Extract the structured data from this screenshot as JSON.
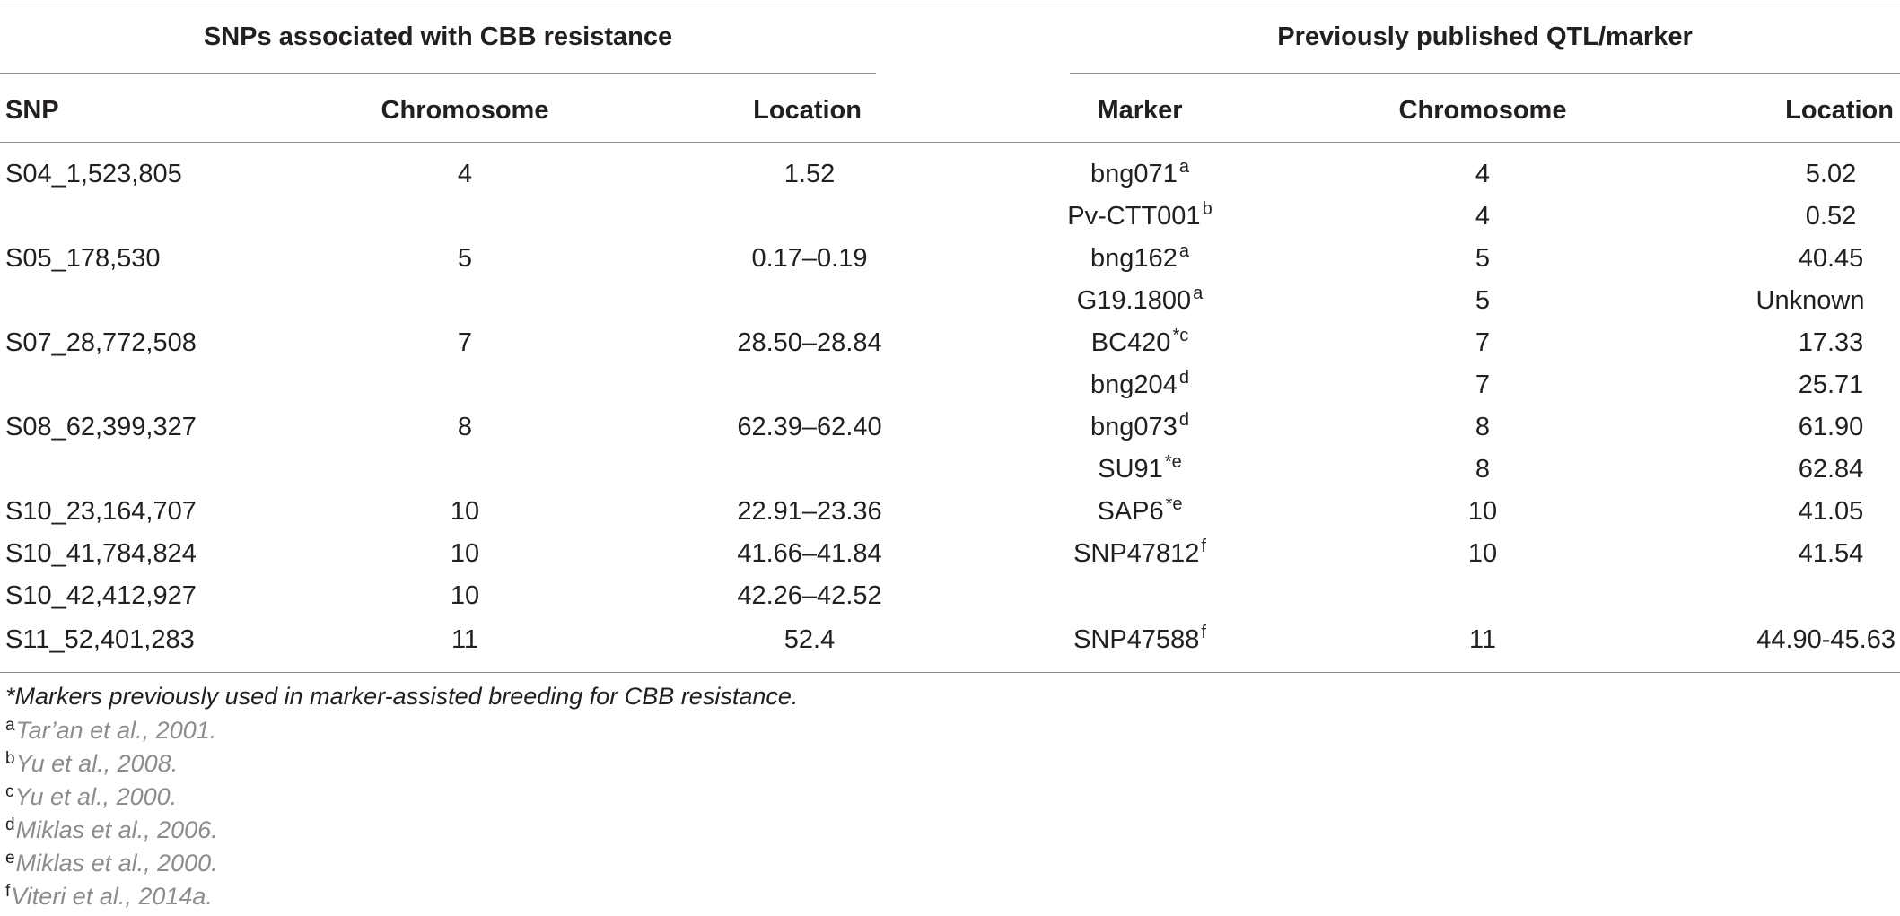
{
  "groups": {
    "left": "SNPs associated with CBB resistance",
    "right": "Previously published QTL/marker"
  },
  "columns": {
    "snp": "SNP",
    "chromosome": "Chromosome",
    "location": "Location",
    "marker": "Marker",
    "marker_chromosome": "Chromosome",
    "marker_location": "Location"
  },
  "rows": [
    {
      "snp": "S04_1,523,805",
      "chr": "4",
      "loc": "1.52",
      "marker": "bng071",
      "msup": "a",
      "mchr": "4",
      "mloc": "5.02"
    },
    {
      "snp": "",
      "chr": "",
      "loc": "",
      "marker": "Pv-CTT001",
      "msup": "b",
      "mchr": "4",
      "mloc": "0.52"
    },
    {
      "snp": "S05_178,530",
      "chr": "5",
      "loc": "0.17–0.19",
      "marker": "bng162",
      "msup": "a",
      "mchr": "5",
      "mloc": "40.45"
    },
    {
      "snp": "",
      "chr": "",
      "loc": "",
      "marker": "G19.1800",
      "msup": "a",
      "mchr": "5",
      "mloc": "Unknown"
    },
    {
      "snp": "S07_28,772,508",
      "chr": "7",
      "loc": "28.50–28.84",
      "marker": "BC420",
      "msup": "*c",
      "mchr": "7",
      "mloc": "17.33"
    },
    {
      "snp": "",
      "chr": "",
      "loc": "",
      "marker": "bng204",
      "msup": "d",
      "mchr": "7",
      "mloc": "25.71"
    },
    {
      "snp": "S08_62,399,327",
      "chr": "8",
      "loc": "62.39–62.40",
      "marker": "bng073",
      "msup": "d",
      "mchr": "8",
      "mloc": "61.90"
    },
    {
      "snp": "",
      "chr": "",
      "loc": "",
      "marker": "SU91",
      "msup": "*e",
      "mchr": "8",
      "mloc": "62.84"
    },
    {
      "snp": "S10_23,164,707",
      "chr": "10",
      "loc": "22.91–23.36",
      "marker": "SAP6",
      "msup": "*e",
      "mchr": "10",
      "mloc": "41.05"
    },
    {
      "snp": "S10_41,784,824",
      "chr": "10",
      "loc": "41.66–41.84",
      "marker": "SNP47812",
      "msup": "f",
      "mchr": "10",
      "mloc": "41.54"
    },
    {
      "snp": "S10_42,412,927",
      "chr": "10",
      "loc": "42.26–42.52",
      "marker": "",
      "msup": "",
      "mchr": "",
      "mloc": ""
    },
    {
      "snp": "S11_52,401,283",
      "chr": "11",
      "loc": "52.4",
      "marker": "SNP47588",
      "msup": "f",
      "mchr": "11",
      "mloc": "44.90-45.63"
    }
  ],
  "footnotes": {
    "star": "*Markers previously used in marker-assisted breeding for CBB resistance.",
    "refs": [
      {
        "sup": "a",
        "text": "Tar’an et al., 2001."
      },
      {
        "sup": "b",
        "text": "Yu et al., 2008."
      },
      {
        "sup": "c",
        "text": "Yu et al., 2000."
      },
      {
        "sup": "d",
        "text": "Miklas et al., 2006."
      },
      {
        "sup": "e",
        "text": "Miklas et al., 2000."
      },
      {
        "sup": "f",
        "text": "Viteri et al., 2014a."
      }
    ]
  }
}
